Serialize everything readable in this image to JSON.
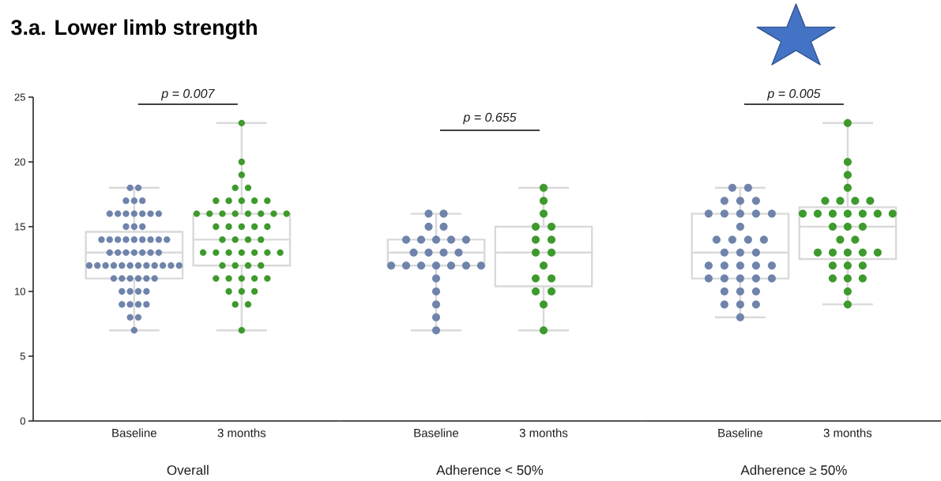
{
  "chart_data": [
    {
      "type": "box",
      "title": "3.a. Lower limb strength",
      "xlabel": "Overall",
      "categories": [
        "Baseline",
        "3 months"
      ],
      "ylim": [
        0,
        25
      ],
      "yticks": [
        0,
        5,
        10,
        15,
        20,
        25
      ],
      "marker": "circle",
      "annotations": [
        "p = 0.007"
      ],
      "series": [
        {
          "type": "box",
          "color": "#d9d9d9",
          "boxes": [
            {
              "low": 7,
              "q1": 11,
              "median": 13,
              "q3": 14.6,
              "high": 18
            },
            {
              "low": 7,
              "q1": 12,
              "median": 14,
              "q3": 16,
              "high": 23
            }
          ]
        },
        {
          "type": "scatter",
          "color": "#6f83ab",
          "x": [
            "Baseline",
            "Baseline",
            "Baseline",
            "Baseline",
            "Baseline",
            "Baseline",
            "Baseline",
            "Baseline",
            "Baseline",
            "Baseline",
            "Baseline",
            "Baseline",
            "Baseline",
            "Baseline",
            "Baseline",
            "Baseline",
            "Baseline",
            "Baseline",
            "Baseline",
            "Baseline",
            "Baseline",
            "Baseline",
            "Baseline",
            "Baseline",
            "Baseline",
            "Baseline",
            "Baseline",
            "Baseline",
            "Baseline",
            "Baseline",
            "Baseline",
            "Baseline",
            "Baseline",
            "Baseline",
            "Baseline",
            "Baseline",
            "Baseline",
            "Baseline",
            "Baseline",
            "Baseline",
            "Baseline",
            "Baseline",
            "Baseline",
            "Baseline",
            "Baseline",
            "Baseline",
            "Baseline",
            "Baseline",
            "Baseline",
            "Baseline",
            "Baseline",
            "Baseline",
            "Baseline",
            "Baseline",
            "Baseline",
            "Baseline",
            "Baseline",
            "Baseline",
            "Baseline",
            "Baseline"
          ],
          "values": [
            7,
            8,
            8,
            9,
            9,
            9,
            9,
            10,
            10,
            10,
            10,
            11,
            11,
            11,
            11,
            11,
            11,
            12,
            12,
            12,
            12,
            12,
            12,
            12,
            12,
            12,
            12,
            12,
            12,
            13,
            13,
            13,
            13,
            13,
            13,
            13,
            14,
            14,
            14,
            14,
            14,
            14,
            14,
            14,
            14,
            15,
            15,
            15,
            16,
            16,
            16,
            16,
            16,
            16,
            16,
            17,
            17,
            17,
            18,
            18
          ]
        },
        {
          "type": "scatter",
          "color": "#3d9a2c",
          "x": [
            "3 months",
            "3 months",
            "3 months",
            "3 months",
            "3 months",
            "3 months",
            "3 months",
            "3 months",
            "3 months",
            "3 months",
            "3 months",
            "3 months",
            "3 months",
            "3 months",
            "3 months",
            "3 months",
            "3 months",
            "3 months",
            "3 months",
            "3 months",
            "3 months",
            "3 months",
            "3 months",
            "3 months",
            "3 months",
            "3 months",
            "3 months",
            "3 months",
            "3 months",
            "3 months",
            "3 months",
            "3 months",
            "3 months",
            "3 months",
            "3 months",
            "3 months",
            "3 months",
            "3 months",
            "3 months",
            "3 months",
            "3 months",
            "3 months",
            "3 months",
            "3 months",
            "3 months",
            "3 months",
            "3 months",
            "3 months",
            "3 months"
          ],
          "values": [
            7,
            9,
            9,
            10,
            10,
            10,
            11,
            11,
            11,
            11,
            11,
            12,
            12,
            12,
            12,
            13,
            13,
            13,
            13,
            13,
            13,
            13,
            14,
            14,
            14,
            14,
            15,
            15,
            15,
            15,
            15,
            16,
            16,
            16,
            16,
            16,
            16,
            16,
            16,
            17,
            17,
            17,
            17,
            17,
            18,
            18,
            19,
            20,
            23
          ]
        }
      ]
    },
    {
      "type": "box",
      "xlabel": "Adherence < 50%",
      "categories": [
        "Baseline",
        "3 months"
      ],
      "ylim": [
        0,
        25
      ],
      "tick_labels": "x",
      "marker": "circle",
      "annotations": [
        "p = 0.655"
      ],
      "series": [
        {
          "type": "box",
          "color": "#d9d9d9",
          "boxes": [
            {
              "low": 7,
              "q1": 12,
              "median": 13,
              "q3": 14,
              "high": 16
            },
            {
              "low": 7,
              "q1": 10.4,
              "median": 13,
              "q3": 15,
              "high": 18
            }
          ]
        },
        {
          "type": "scatter",
          "color": "#6f83ab",
          "x": [
            "Baseline",
            "Baseline",
            "Baseline",
            "Baseline",
            "Baseline",
            "Baseline",
            "Baseline",
            "Baseline",
            "Baseline",
            "Baseline",
            "Baseline",
            "Baseline",
            "Baseline",
            "Baseline",
            "Baseline",
            "Baseline",
            "Baseline",
            "Baseline",
            "Baseline",
            "Baseline",
            "Baseline",
            "Baseline",
            "Baseline",
            "Baseline",
            "Baseline"
          ],
          "values": [
            7,
            8,
            9,
            10,
            11,
            12,
            12,
            12,
            12,
            12,
            12,
            12,
            13,
            13,
            13,
            13,
            14,
            14,
            14,
            14,
            14,
            15,
            15,
            16,
            16
          ]
        },
        {
          "type": "scatter",
          "color": "#3d9a2c",
          "x": [
            "3 months",
            "3 months",
            "3 months",
            "3 months",
            "3 months",
            "3 months",
            "3 months",
            "3 months",
            "3 months",
            "3 months",
            "3 months",
            "3 months",
            "3 months",
            "3 months",
            "3 months",
            "3 months"
          ],
          "values": [
            7,
            9,
            10,
            10,
            11,
            11,
            12,
            13,
            13,
            14,
            14,
            15,
            15,
            16,
            17,
            18
          ]
        }
      ]
    },
    {
      "type": "box",
      "xlabel": "Adherence ≥ 50%",
      "categories": [
        "Baseline",
        "3 months"
      ],
      "ylim": [
        0,
        25
      ],
      "tick_labels": "x",
      "marker": "circle",
      "annotations": [
        "p = 0.005"
      ],
      "series": [
        {
          "type": "box",
          "color": "#d9d9d9",
          "boxes": [
            {
              "low": 8,
              "q1": 11,
              "median": 13,
              "q3": 16,
              "high": 18
            },
            {
              "low": 9,
              "q1": 12.5,
              "median": 15,
              "q3": 16.5,
              "high": 23
            }
          ]
        },
        {
          "type": "scatter",
          "color": "#6f83ab",
          "x": [
            "Baseline",
            "Baseline",
            "Baseline",
            "Baseline",
            "Baseline",
            "Baseline",
            "Baseline",
            "Baseline",
            "Baseline",
            "Baseline",
            "Baseline",
            "Baseline",
            "Baseline",
            "Baseline",
            "Baseline",
            "Baseline",
            "Baseline",
            "Baseline",
            "Baseline",
            "Baseline",
            "Baseline",
            "Baseline",
            "Baseline",
            "Baseline",
            "Baseline",
            "Baseline",
            "Baseline",
            "Baseline",
            "Baseline",
            "Baseline",
            "Baseline",
            "Baseline",
            "Baseline",
            "Baseline",
            "Baseline"
          ],
          "values": [
            8,
            9,
            9,
            9,
            10,
            10,
            10,
            11,
            11,
            11,
            11,
            11,
            12,
            12,
            12,
            12,
            12,
            13,
            13,
            13,
            14,
            14,
            14,
            14,
            15,
            16,
            16,
            16,
            16,
            16,
            17,
            17,
            17,
            18,
            18
          ]
        },
        {
          "type": "scatter",
          "color": "#3d9a2c",
          "x": [
            "3 months",
            "3 months",
            "3 months",
            "3 months",
            "3 months",
            "3 months",
            "3 months",
            "3 months",
            "3 months",
            "3 months",
            "3 months",
            "3 months",
            "3 months",
            "3 months",
            "3 months",
            "3 months",
            "3 months",
            "3 months",
            "3 months",
            "3 months",
            "3 months",
            "3 months",
            "3 months",
            "3 months",
            "3 months",
            "3 months",
            "3 months",
            "3 months",
            "3 months",
            "3 months",
            "3 months",
            "3 months",
            "3 months"
          ],
          "values": [
            9,
            10,
            11,
            11,
            11,
            12,
            12,
            12,
            13,
            13,
            13,
            13,
            13,
            14,
            14,
            15,
            15,
            15,
            16,
            16,
            16,
            16,
            16,
            16,
            16,
            17,
            17,
            17,
            17,
            18,
            19,
            20,
            23
          ]
        }
      ]
    }
  ]
}
